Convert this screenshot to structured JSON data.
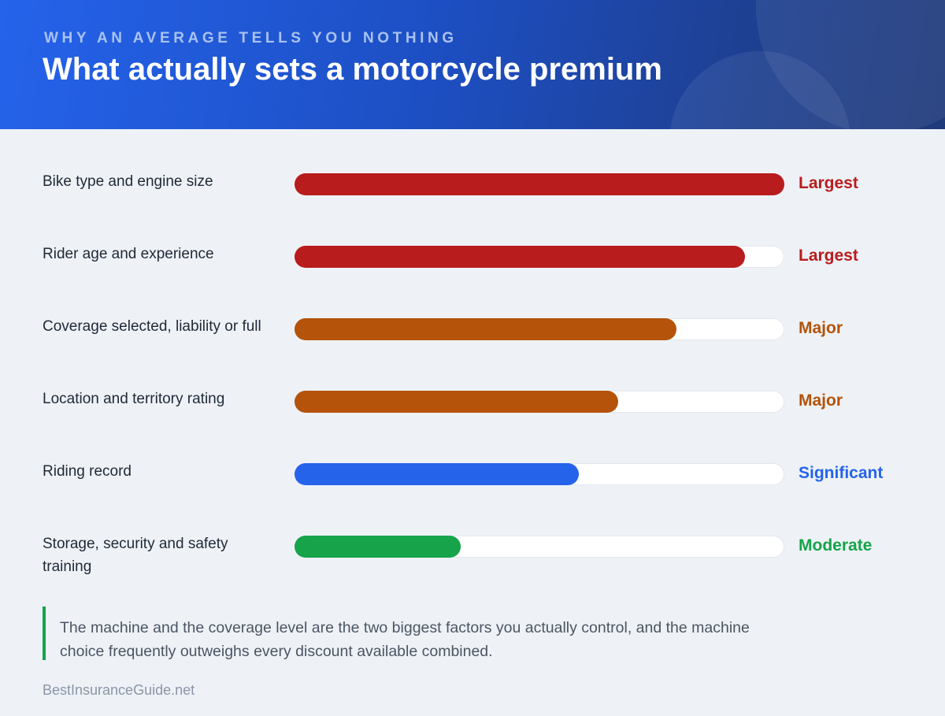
{
  "header": {
    "kicker": "WHY AN AVERAGE TELLS YOU NOTHING",
    "title": "What actually sets a motorcycle premium"
  },
  "chart_data": {
    "type": "bar",
    "orientation": "horizontal",
    "value_scale": "relative (0 to 1, no printed axis)",
    "categories": [
      "Bike type and engine size",
      "Rider age and experience",
      "Coverage selected, liability or full",
      "Location and territory rating",
      "Riding record",
      "Storage, security and safety training"
    ],
    "values": [
      1.0,
      0.92,
      0.78,
      0.66,
      0.58,
      0.34
    ],
    "levels": [
      "Largest",
      "Largest",
      "Major",
      "Major",
      "Significant",
      "Moderate"
    ],
    "colors": {
      "Largest": "#b91c1c",
      "Major": "#b45309",
      "Significant": "#2563eb",
      "Moderate": "#16a34a"
    },
    "title": "What actually sets a motorcycle premium",
    "grid": false,
    "legend": "none"
  },
  "callout": {
    "text": "The machine and the coverage level are the two biggest factors you actually control, and the machine choice frequently outweighs every discount available combined."
  },
  "footer": {
    "source": "BestInsuranceGuide.net"
  }
}
